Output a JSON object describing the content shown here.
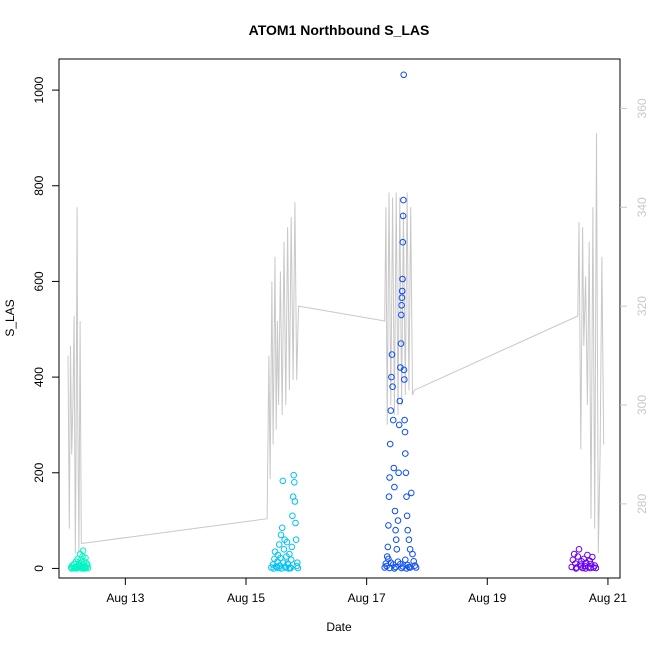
{
  "chart_data": {
    "type": "scatter",
    "title": "ATOM1 Northbound S_LAS",
    "xlabel": "Date",
    "ylabel": "S_LAS",
    "x_tick_labels": [
      "Aug 13",
      "Aug 15",
      "Aug 17",
      "Aug 19",
      "Aug 21"
    ],
    "x_tick_values": [
      13,
      15,
      17,
      19,
      21
    ],
    "xlim": [
      11.9,
      21.2
    ],
    "y_tick_labels": [
      "0",
      "200",
      "400",
      "600",
      "800",
      "1000"
    ],
    "y_tick_values": [
      0,
      200,
      400,
      600,
      800,
      1000
    ],
    "ylim": [
      -20,
      1065
    ],
    "y2_tick_labels": [
      "280",
      "300",
      "320",
      "340",
      "360"
    ],
    "y2_tick_values": [
      280,
      300,
      320,
      340,
      360
    ],
    "y2lim": [
      265,
      370
    ],
    "y2_color": "#c8c8c8",
    "grid": false,
    "legend": "none",
    "point_series": [
      {
        "color": "#00f5c2",
        "points": [
          [
            12.1,
            2
          ],
          [
            12.12,
            6
          ],
          [
            12.14,
            1
          ],
          [
            12.15,
            9
          ],
          [
            12.17,
            3
          ],
          [
            12.18,
            14
          ],
          [
            12.2,
            4
          ],
          [
            12.21,
            20
          ],
          [
            12.22,
            7
          ],
          [
            12.23,
            2
          ],
          [
            12.24,
            11
          ],
          [
            12.25,
            30
          ],
          [
            12.26,
            5
          ],
          [
            12.27,
            18
          ],
          [
            12.28,
            3
          ],
          [
            12.29,
            25
          ],
          [
            12.3,
            37
          ],
          [
            12.3,
            8
          ],
          [
            12.31,
            1
          ],
          [
            12.32,
            14
          ],
          [
            12.33,
            4
          ],
          [
            12.34,
            22
          ],
          [
            12.35,
            2
          ],
          [
            12.36,
            10
          ],
          [
            12.37,
            6
          ],
          [
            12.38,
            1
          ],
          [
            12.19,
            0
          ],
          [
            12.11,
            0
          ],
          [
            12.16,
            1
          ],
          [
            12.28,
            0
          ],
          [
            12.33,
            0
          ],
          [
            12.21,
            3
          ]
        ]
      },
      {
        "color": "#00c3f5",
        "points": [
          [
            15.42,
            2
          ],
          [
            15.45,
            8
          ],
          [
            15.47,
            20
          ],
          [
            15.48,
            35
          ],
          [
            15.5,
            4
          ],
          [
            15.52,
            14
          ],
          [
            15.53,
            28
          ],
          [
            15.55,
            50
          ],
          [
            15.56,
            6
          ],
          [
            15.57,
            22
          ],
          [
            15.58,
            70
          ],
          [
            15.6,
            85
          ],
          [
            15.61,
            183
          ],
          [
            15.62,
            12
          ],
          [
            15.63,
            40
          ],
          [
            15.64,
            60
          ],
          [
            15.65,
            3
          ],
          [
            15.67,
            25
          ],
          [
            15.68,
            55
          ],
          [
            15.7,
            8
          ],
          [
            15.72,
            30
          ],
          [
            15.73,
            2
          ],
          [
            15.75,
            18
          ],
          [
            15.76,
            45
          ],
          [
            15.77,
            110
          ],
          [
            15.78,
            150
          ],
          [
            15.79,
            195
          ],
          [
            15.8,
            180
          ],
          [
            15.81,
            140
          ],
          [
            15.82,
            95
          ],
          [
            15.83,
            60
          ],
          [
            15.84,
            5
          ],
          [
            15.85,
            12
          ],
          [
            15.86,
            1
          ],
          [
            15.46,
            0
          ],
          [
            15.54,
            1
          ],
          [
            15.59,
            0
          ],
          [
            15.66,
            2
          ],
          [
            15.71,
            0
          ],
          [
            15.74,
            1
          ],
          [
            15.69,
            10
          ],
          [
            15.51,
            3
          ]
        ]
      },
      {
        "color": "#0a4cf5",
        "points": [
          [
            17.3,
            2
          ],
          [
            17.32,
            10
          ],
          [
            17.34,
            25
          ],
          [
            17.35,
            45
          ],
          [
            17.36,
            90
          ],
          [
            17.37,
            150
          ],
          [
            17.38,
            190
          ],
          [
            17.39,
            260
          ],
          [
            17.4,
            330
          ],
          [
            17.41,
            400
          ],
          [
            17.42,
            447
          ],
          [
            17.43,
            380
          ],
          [
            17.44,
            310
          ],
          [
            17.45,
            210
          ],
          [
            17.46,
            170
          ],
          [
            17.47,
            120
          ],
          [
            17.48,
            80
          ],
          [
            17.49,
            60
          ],
          [
            17.5,
            40
          ],
          [
            17.52,
            100
          ],
          [
            17.53,
            200
          ],
          [
            17.54,
            300
          ],
          [
            17.55,
            350
          ],
          [
            17.56,
            420
          ],
          [
            17.57,
            470
          ],
          [
            17.575,
            530
          ],
          [
            17.58,
            550
          ],
          [
            17.585,
            566
          ],
          [
            17.59,
            580
          ],
          [
            17.595,
            605
          ],
          [
            17.6,
            682
          ],
          [
            17.605,
            737
          ],
          [
            17.61,
            770
          ],
          [
            17.615,
            1032
          ],
          [
            17.62,
            415
          ],
          [
            17.625,
            395
          ],
          [
            17.63,
            310
          ],
          [
            17.635,
            285
          ],
          [
            17.64,
            240
          ],
          [
            17.65,
            200
          ],
          [
            17.66,
            150
          ],
          [
            17.67,
            110
          ],
          [
            17.68,
            80
          ],
          [
            17.7,
            60
          ],
          [
            17.72,
            40
          ],
          [
            17.74,
            158
          ],
          [
            17.76,
            30
          ],
          [
            17.78,
            15
          ],
          [
            17.8,
            6
          ],
          [
            17.82,
            2
          ],
          [
            17.33,
            5
          ],
          [
            17.36,
            20
          ],
          [
            17.4,
            12
          ],
          [
            17.44,
            8
          ],
          [
            17.48,
            3
          ],
          [
            17.52,
            14
          ],
          [
            17.56,
            9
          ],
          [
            17.6,
            4
          ],
          [
            17.64,
            18
          ],
          [
            17.68,
            7
          ],
          [
            17.72,
            2
          ],
          [
            17.38,
            1
          ],
          [
            17.46,
            0
          ],
          [
            17.58,
            1
          ],
          [
            17.66,
            0
          ],
          [
            17.7,
            3
          ]
        ]
      },
      {
        "color": "#6600f5",
        "points": [
          [
            20.4,
            3
          ],
          [
            20.42,
            18
          ],
          [
            20.44,
            30
          ],
          [
            20.46,
            10
          ],
          [
            20.48,
            2
          ],
          [
            20.5,
            25
          ],
          [
            20.52,
            40
          ],
          [
            20.54,
            8
          ],
          [
            20.56,
            15
          ],
          [
            20.58,
            1
          ],
          [
            20.6,
            20
          ],
          [
            20.62,
            5
          ],
          [
            20.64,
            12
          ],
          [
            20.66,
            28
          ],
          [
            20.68,
            3
          ],
          [
            20.7,
            16
          ],
          [
            20.72,
            9
          ],
          [
            20.74,
            24
          ],
          [
            20.76,
            2
          ],
          [
            20.78,
            6
          ],
          [
            20.8,
            1
          ],
          [
            20.47,
            0
          ],
          [
            20.55,
            4
          ],
          [
            20.63,
            0
          ],
          [
            20.71,
            1
          ]
        ]
      }
    ],
    "line_series": {
      "color": "#c8c8c8",
      "axis": "right",
      "points": [
        [
          12.05,
          310
        ],
        [
          12.07,
          275
        ],
        [
          12.09,
          312
        ],
        [
          12.11,
          290
        ],
        [
          12.13,
          300
        ],
        [
          12.15,
          318
        ],
        [
          12.17,
          270
        ],
        [
          12.18,
          285
        ],
        [
          12.2,
          340
        ],
        [
          12.21,
          300
        ],
        [
          12.23,
          270
        ],
        [
          12.25,
          317
        ],
        [
          12.27,
          272
        ],
        [
          12.29,
          272
        ],
        [
          15.35,
          277
        ],
        [
          15.38,
          310
        ],
        [
          15.4,
          285
        ],
        [
          15.43,
          325
        ],
        [
          15.45,
          292
        ],
        [
          15.48,
          330
        ],
        [
          15.5,
          295
        ],
        [
          15.52,
          317
        ],
        [
          15.54,
          300
        ],
        [
          15.57,
          327
        ],
        [
          15.6,
          298
        ],
        [
          15.63,
          333
        ],
        [
          15.66,
          300
        ],
        [
          15.69,
          336
        ],
        [
          15.72,
          303
        ],
        [
          15.75,
          338
        ],
        [
          15.78,
          305
        ],
        [
          15.81,
          341
        ],
        [
          15.84,
          305
        ],
        [
          15.87,
          320
        ],
        [
          17.3,
          317
        ],
        [
          17.32,
          340
        ],
        [
          17.34,
          296
        ],
        [
          17.37,
          343
        ],
        [
          17.4,
          300
        ],
        [
          17.43,
          342
        ],
        [
          17.46,
          298
        ],
        [
          17.49,
          343
        ],
        [
          17.52,
          298
        ],
        [
          17.55,
          342
        ],
        [
          17.58,
          300
        ],
        [
          17.61,
          339
        ],
        [
          17.64,
          302
        ],
        [
          17.67,
          343
        ],
        [
          17.7,
          303
        ],
        [
          17.73,
          340
        ],
        [
          17.76,
          302
        ],
        [
          17.79,
          303
        ],
        [
          20.5,
          318
        ],
        [
          20.52,
          337
        ],
        [
          20.55,
          291
        ],
        [
          20.58,
          336
        ],
        [
          20.6,
          312
        ],
        [
          20.63,
          326
        ],
        [
          20.66,
          300
        ],
        [
          20.69,
          333
        ],
        [
          20.72,
          277
        ],
        [
          20.75,
          340
        ],
        [
          20.78,
          275
        ],
        [
          20.81,
          355
        ],
        [
          20.84,
          270
        ],
        [
          20.87,
          290
        ],
        [
          20.9,
          330
        ],
        [
          20.93,
          292
        ]
      ]
    }
  }
}
